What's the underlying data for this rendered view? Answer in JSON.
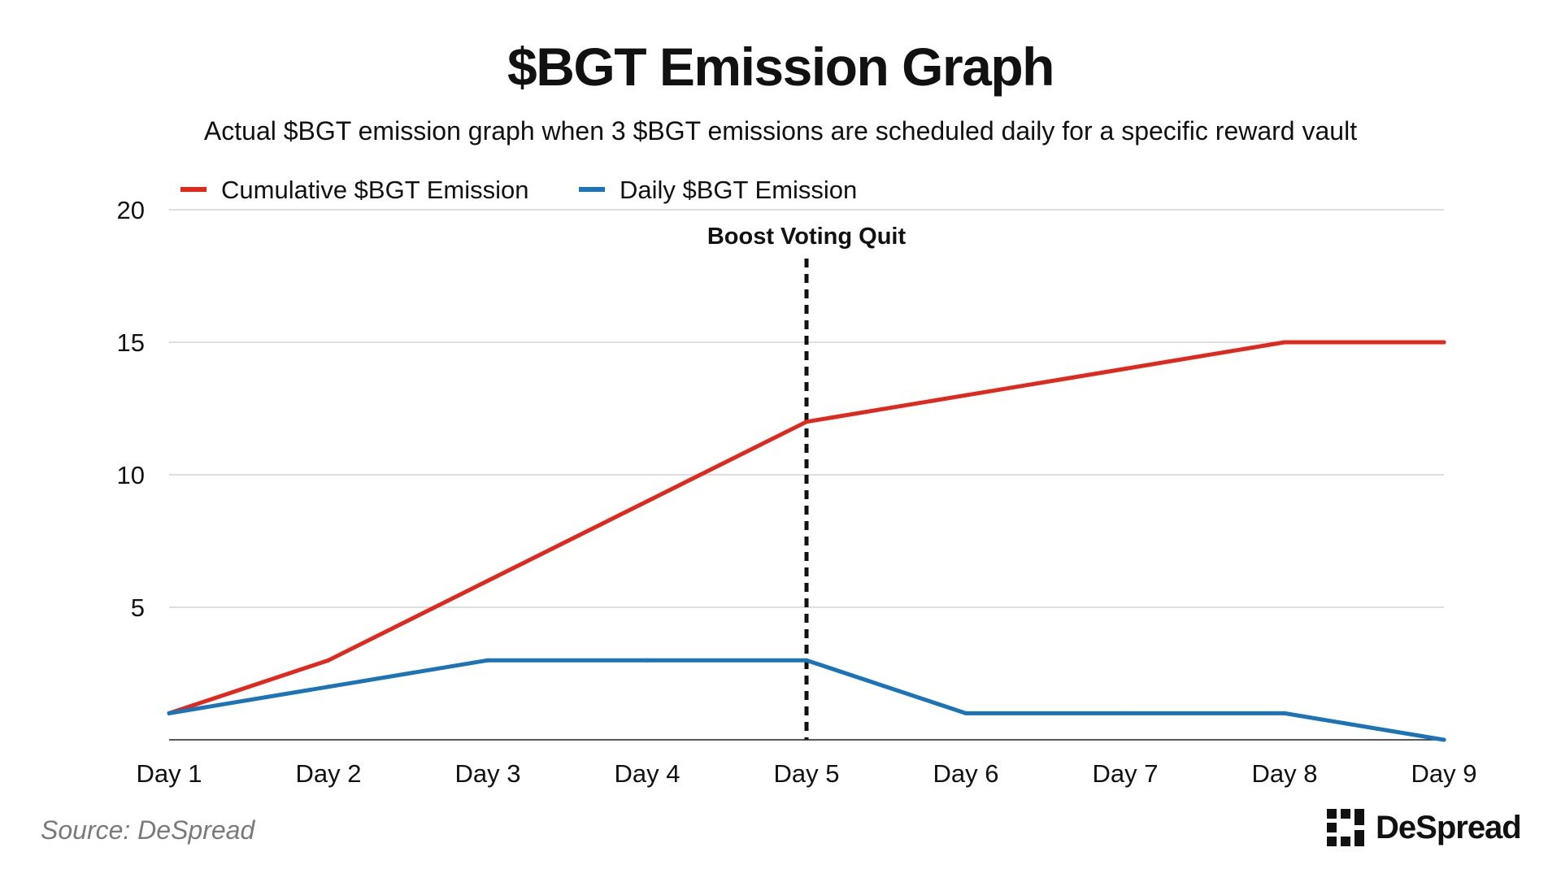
{
  "header": {
    "title": "$BGT Emission Graph",
    "subtitle": "Actual $BGT emission graph when 3 $BGT emissions are scheduled daily for a specific reward vault"
  },
  "chart_data": {
    "type": "line",
    "title": "$BGT Emission Graph",
    "subtitle": "Actual $BGT emission graph when 3 $BGT emissions are scheduled daily for a specific reward vault",
    "xlabel": "",
    "ylabel": "",
    "categories": [
      "Day 1",
      "Day 2",
      "Day 3",
      "Day 4",
      "Day 5",
      "Day 6",
      "Day 7",
      "Day 8",
      "Day 9"
    ],
    "yticks": [
      5,
      10,
      15,
      20
    ],
    "ylim": [
      0,
      20
    ],
    "grid": true,
    "legend_position": "top-left",
    "series": [
      {
        "name": "Cumulative $BGT Emission",
        "color": "#e0281d",
        "values": [
          1,
          3,
          6,
          9,
          12,
          13,
          14,
          15,
          15
        ]
      },
      {
        "name": "Daily $BGT Emission",
        "color": "#1b73b8",
        "values": [
          1,
          2,
          3,
          3,
          3,
          1,
          1,
          1,
          0
        ]
      }
    ],
    "annotations": [
      {
        "text": "Boost Voting Quit",
        "x": "Day 5",
        "style": "dashed-vertical-line",
        "color": "#111111"
      }
    ]
  },
  "footer": {
    "source": "Source: DeSpread",
    "brand": "DeSpread",
    "brand_icon": "despread-logo-icon"
  }
}
